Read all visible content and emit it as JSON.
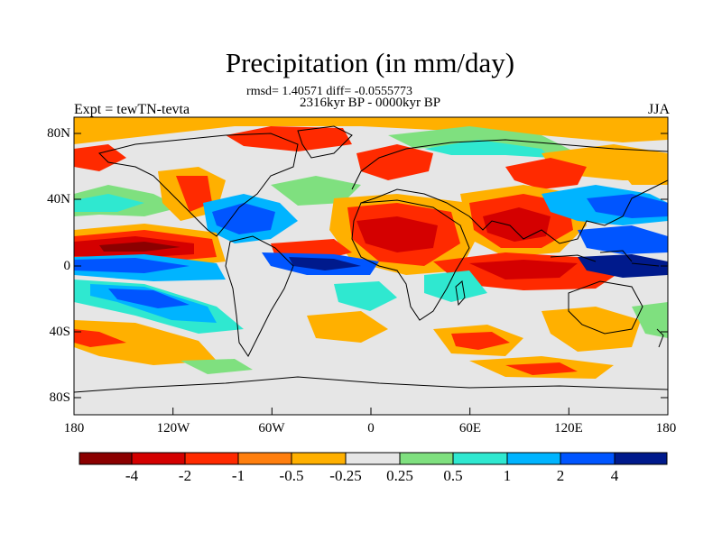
{
  "title": "Precipitation (in mm/day)",
  "stats_line": "rmsd= 1.40571 diff= -0.0555773",
  "period_line": "2316kyr BP - 0000kyr BP",
  "experiment_label": "Expt = tewTN-tevta",
  "season_label": "JJA",
  "map": {
    "lat_ticks": [
      "80N",
      "40N",
      "0",
      "40S",
      "80S"
    ],
    "lon_ticks": [
      "180",
      "120W",
      "60W",
      "0",
      "60E",
      "120E",
      "180"
    ],
    "land_fill": "#e6e6e6",
    "coastline_color": "#000000"
  },
  "colorbar": {
    "labels": [
      "-4",
      "-2",
      "-1",
      "-0.5",
      "-0.25",
      "0.25",
      "0.5",
      "1",
      "2",
      "4"
    ],
    "colors": [
      "#8b0000",
      "#d40000",
      "#ff2a00",
      "#ff7f0e",
      "#ffb000",
      "#e6e6e6",
      "#7fe07f",
      "#2fe8d0",
      "#00b4ff",
      "#0055ff",
      "#001a8c"
    ]
  }
}
